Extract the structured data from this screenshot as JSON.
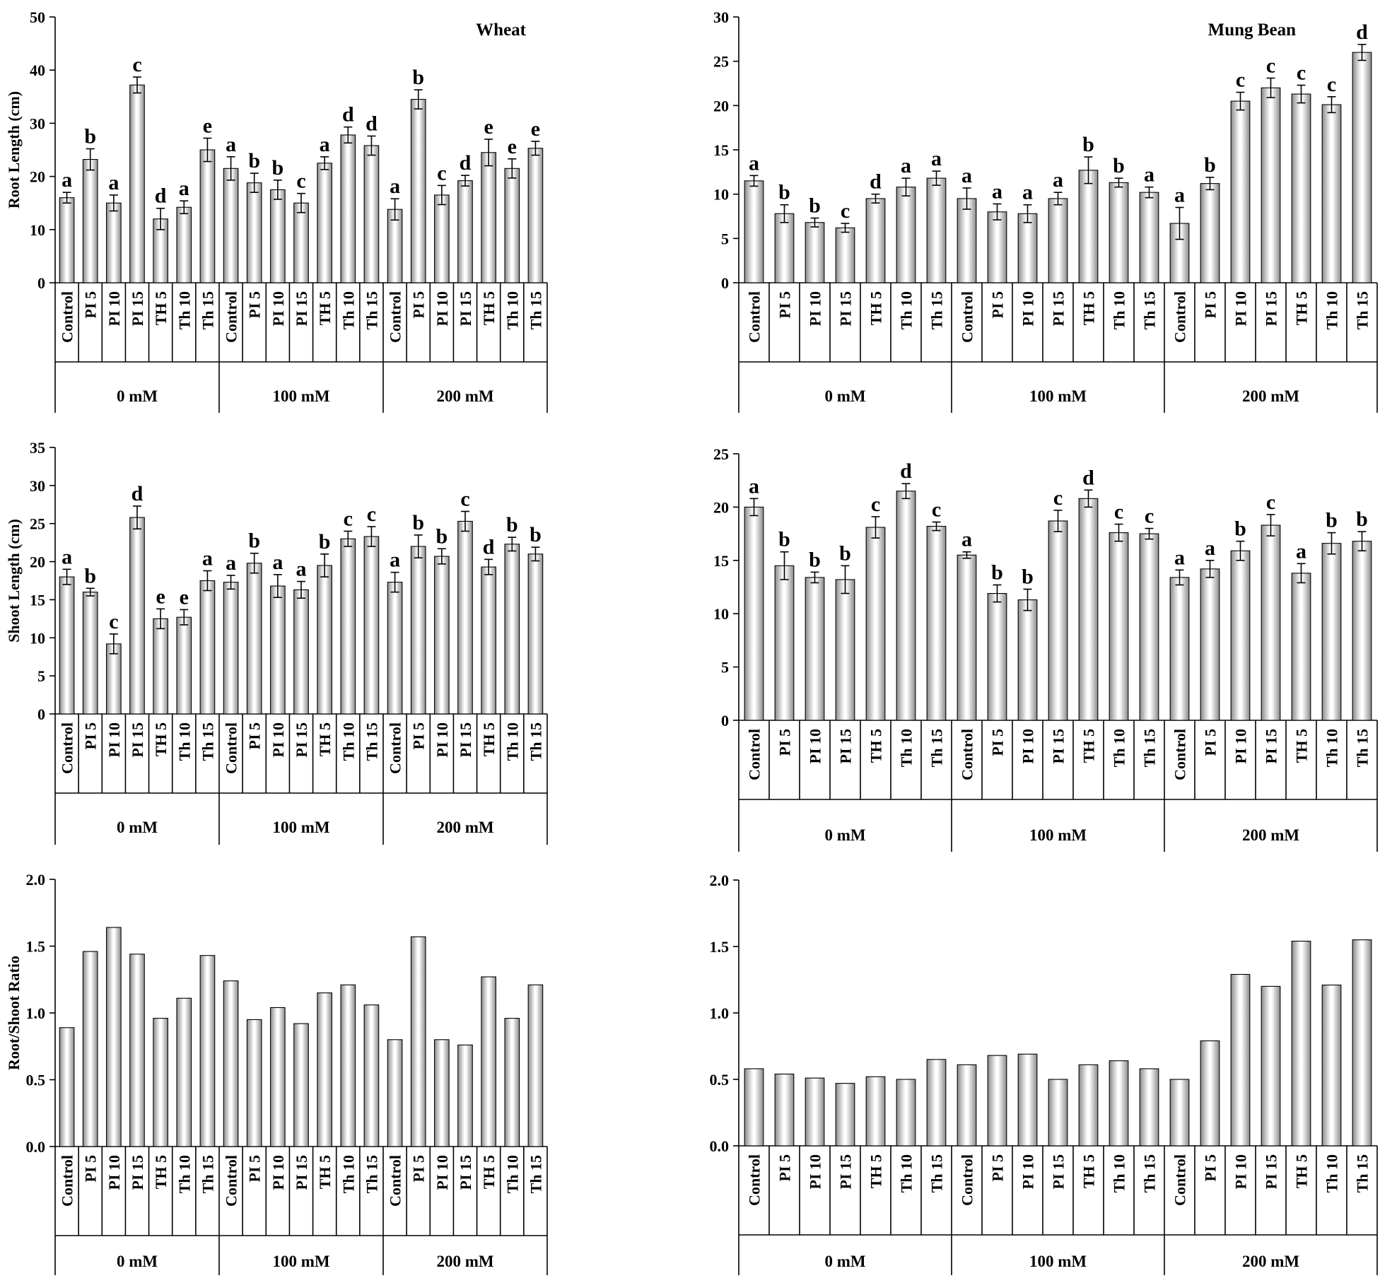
{
  "chart_data": [
    {
      "type": "bar",
      "title": "Wheat",
      "ylabel": "Root Length (cm)",
      "ylim": [
        0,
        50
      ],
      "yticks": [
        0,
        10,
        20,
        30,
        40,
        50
      ],
      "ytick_labels": [
        "0",
        "10",
        "20",
        "30",
        "40",
        "50"
      ],
      "categories": [
        "Control",
        "PI 5",
        "PI 10",
        "PI 15",
        "TH 5",
        "Th 10",
        "Th 15",
        "Control",
        "PI 5",
        "PI 10",
        "PI 15",
        "TH 5",
        "Th 10",
        "Th 15",
        "Control",
        "PI 5",
        "PI 10",
        "PI 15",
        "TH 5",
        "Th 10",
        "Th 15"
      ],
      "groups": [
        "0 mM",
        "100 mM",
        "200 mM"
      ],
      "values": [
        16,
        23.2,
        15,
        37.2,
        12,
        14.2,
        25,
        21.5,
        18.8,
        17.5,
        15,
        22.5,
        27.8,
        25.8,
        13.8,
        34.5,
        16.5,
        19.2,
        24.5,
        21.5,
        25.3
      ],
      "errors": [
        1,
        2,
        1.5,
        1.5,
        2,
        1.2,
        2.2,
        2.2,
        1.8,
        1.8,
        1.8,
        1.2,
        1.5,
        1.8,
        2,
        1.8,
        1.8,
        1,
        2.5,
        1.8,
        1.3
      ],
      "sig": [
        "a",
        "b",
        "a",
        "c",
        "d",
        "a",
        "e",
        "a",
        "b",
        "b",
        "c",
        "a",
        "d",
        "d",
        "a",
        "b",
        "c",
        "d",
        "e",
        "e",
        "e"
      ]
    },
    {
      "type": "bar",
      "title": "Mung Bean",
      "ylabel": "",
      "ylim": [
        0,
        30
      ],
      "yticks": [
        0,
        5,
        10,
        15,
        20,
        25,
        30
      ],
      "ytick_labels": [
        "0",
        "5",
        "10",
        "15",
        "20",
        "25",
        "30"
      ],
      "categories": [
        "Control",
        "PI 5",
        "PI 10",
        "PI 15",
        "TH 5",
        "Th 10",
        "Th 15",
        "Control",
        "PI 5",
        "PI 10",
        "PI 15",
        "TH 5",
        "Th 10",
        "Th 15",
        "Control",
        "PI 5",
        "PI 10",
        "PI 15",
        "TH 5",
        "Th 10",
        "Th 15"
      ],
      "groups": [
        "0 mM",
        "100 mM",
        "200 mM"
      ],
      "values": [
        11.5,
        7.8,
        6.8,
        6.2,
        9.5,
        10.8,
        11.8,
        9.5,
        8,
        7.8,
        9.5,
        12.7,
        11.3,
        10.2,
        6.7,
        11.2,
        20.5,
        22,
        21.3,
        20.1,
        26
      ],
      "errors": [
        0.6,
        1,
        0.5,
        0.5,
        0.5,
        1,
        0.8,
        1.2,
        0.9,
        1,
        0.7,
        1.5,
        0.5,
        0.6,
        1.8,
        0.7,
        1,
        1.1,
        1,
        0.9,
        0.9
      ],
      "sig": [
        "a",
        "b",
        "b",
        "c",
        "d",
        "a",
        "a",
        "a",
        "a",
        "a",
        "a",
        "b",
        "b",
        "a",
        "a",
        "b",
        "c",
        "c",
        "c",
        "c",
        "d"
      ]
    },
    {
      "type": "bar",
      "title": "",
      "ylabel": "Shoot Length (cm)",
      "ylim": [
        0,
        35
      ],
      "yticks": [
        0,
        5,
        10,
        15,
        20,
        25,
        30,
        35
      ],
      "ytick_labels": [
        "0",
        "5",
        "10",
        "15",
        "20",
        "25",
        "30",
        "35"
      ],
      "categories": [
        "Control",
        "PI 5",
        "PI 10",
        "PI 15",
        "TH 5",
        "Th 10",
        "Th 15",
        "Control",
        "PI 5",
        "PI 10",
        "PI 15",
        "TH 5",
        "Th 10",
        "Th 15",
        "Control",
        "PI 5",
        "PI 10",
        "PI 15",
        "TH 5",
        "Th 10",
        "Th 15"
      ],
      "groups": [
        "0 mM",
        "100 mM",
        "200 mM"
      ],
      "values": [
        18,
        16,
        9.2,
        25.8,
        12.5,
        12.7,
        17.5,
        17.3,
        19.8,
        16.8,
        16.3,
        19.5,
        23,
        23.3,
        17.3,
        22,
        20.7,
        25.3,
        19.3,
        22.3,
        21
      ],
      "errors": [
        1,
        0.5,
        1.3,
        1.5,
        1.3,
        1,
        1.3,
        0.9,
        1.3,
        1.5,
        1.1,
        1.5,
        1,
        1.3,
        1.3,
        1.5,
        1,
        1.3,
        1,
        0.9,
        0.9
      ],
      "sig": [
        "a",
        "b",
        "c",
        "d",
        "e",
        "e",
        "a",
        "a",
        "b",
        "a",
        "a",
        "b",
        "c",
        "c",
        "a",
        "b",
        "b",
        "c",
        "d",
        "b",
        "b"
      ]
    },
    {
      "type": "bar",
      "title": "",
      "ylabel": "",
      "ylim": [
        0,
        25
      ],
      "yticks": [
        0,
        5,
        10,
        15,
        20,
        25
      ],
      "ytick_labels": [
        "0",
        "5",
        "10",
        "15",
        "20",
        "25"
      ],
      "categories": [
        "Control",
        "PI 5",
        "PI 10",
        "PI 15",
        "TH 5",
        "Th 10",
        "Th 15",
        "Control",
        "PI 5",
        "PI 10",
        "PI 15",
        "TH 5",
        "Th 10",
        "Th 15",
        "Control",
        "PI 5",
        "PI 10",
        "PI 15",
        "TH 5",
        "Th 10",
        "Th 15"
      ],
      "groups": [
        "0 mM",
        "100 mM",
        "200 mM"
      ],
      "values": [
        20,
        14.5,
        13.4,
        13.2,
        18.1,
        21.5,
        18.2,
        15.5,
        11.9,
        11.3,
        18.7,
        20.8,
        17.6,
        17.5,
        13.4,
        14.2,
        15.9,
        18.3,
        13.8,
        16.6,
        16.8
      ],
      "errors": [
        0.8,
        1.3,
        0.5,
        1.3,
        1,
        0.7,
        0.4,
        0.3,
        0.8,
        1,
        1,
        0.8,
        0.8,
        0.5,
        0.7,
        0.8,
        0.9,
        1,
        0.9,
        1,
        0.9
      ],
      "sig": [
        "a",
        "b",
        "b",
        "b",
        "c",
        "d",
        "c",
        "a",
        "b",
        "b",
        "c",
        "d",
        "c",
        "c",
        "a",
        "a",
        "b",
        "c",
        "a",
        "b",
        "b"
      ]
    },
    {
      "type": "bar",
      "title": "",
      "ylabel": "Root/Shoot Ratio",
      "ylim": [
        0,
        2
      ],
      "yticks": [
        0,
        0.5,
        1,
        1.5,
        2
      ],
      "ytick_labels": [
        "0.0",
        "0.5",
        "1.0",
        "1.5",
        "2.0"
      ],
      "categories": [
        "Control",
        "PI 5",
        "PI 10",
        "PI 15",
        "TH 5",
        "Th 10",
        "Th 15",
        "Control",
        "PI 5",
        "PI 10",
        "PI 15",
        "TH 5",
        "Th 10",
        "Th 15",
        "Control",
        "PI 5",
        "PI 10",
        "PI 15",
        "TH 5",
        "Th 10",
        "Th 15"
      ],
      "groups": [
        "0 mM",
        "100 mM",
        "200 mM"
      ],
      "values": [
        0.89,
        1.46,
        1.64,
        1.44,
        0.96,
        1.11,
        1.43,
        1.24,
        0.95,
        1.04,
        0.92,
        1.15,
        1.21,
        1.06,
        0.8,
        1.57,
        0.8,
        0.76,
        1.27,
        0.96,
        1.21
      ]
    },
    {
      "type": "bar",
      "title": "",
      "ylabel": "",
      "ylim": [
        0,
        2
      ],
      "yticks": [
        0,
        0.5,
        1,
        1.5,
        2
      ],
      "ytick_labels": [
        "0.0",
        "0.5",
        "1.0",
        "1.5",
        "2.0"
      ],
      "categories": [
        "Control",
        "PI 5",
        "PI 10",
        "PI 15",
        "TH 5",
        "Th 10",
        "Th 15",
        "Control",
        "PI 5",
        "PI 10",
        "PI 15",
        "TH 5",
        "Th 10",
        "Th 15",
        "Control",
        "PI 5",
        "PI 10",
        "PI 15",
        "TH 5",
        "Th 10",
        "Th 15"
      ],
      "groups": [
        "0 mM",
        "100 mM",
        "200 mM"
      ],
      "values": [
        0.58,
        0.54,
        0.51,
        0.47,
        0.52,
        0.5,
        0.65,
        0.61,
        0.68,
        0.69,
        0.5,
        0.61,
        0.64,
        0.58,
        0.5,
        0.79,
        1.29,
        1.2,
        1.54,
        1.21,
        1.55
      ]
    }
  ]
}
